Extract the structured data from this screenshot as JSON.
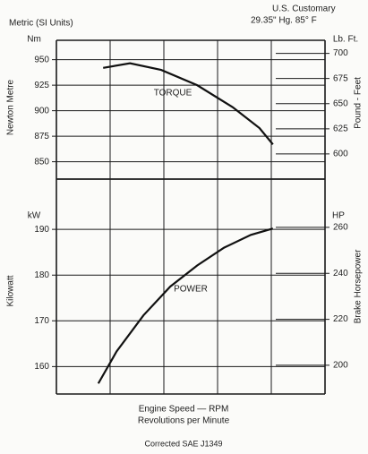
{
  "header": {
    "metric": "Metric (SI Units)",
    "customary": "U.S. Customary",
    "conditions": "29.35\" Hg. 85° F"
  },
  "chart_data": [
    {
      "type": "line",
      "ylabel": "Newton Metre",
      "yunit": "Nm",
      "y2label": "Pound - Feet",
      "y2unit": "Lb. Ft.",
      "xlim": [
        0,
        5
      ],
      "xticks": [
        1,
        2,
        3,
        4
      ],
      "ylim": [
        833,
        969
      ],
      "yticks": [
        850,
        875,
        900,
        925,
        950
      ],
      "y2lim": [
        575,
        713
      ],
      "y2ticks": [
        600,
        625,
        650,
        675,
        700
      ],
      "x": [
        0.87,
        1.37,
        1.95,
        2.62,
        3.28,
        3.78,
        4.03
      ],
      "series": [
        {
          "name": "TORQUE",
          "color": "#111111",
          "values": [
            942,
            946.5,
            940,
            925,
            903.5,
            883,
            867
          ]
        }
      ]
    },
    {
      "type": "line",
      "ylabel": "Kilowatt",
      "yunit": "kW",
      "y2label": "Brake Horsepower",
      "y2unit": "HP",
      "xlim": [
        0,
        5
      ],
      "xticks": [
        1,
        2,
        3,
        4
      ],
      "ylim": [
        154,
        201
      ],
      "yticks": [
        160,
        170,
        180,
        190
      ],
      "y2lim": [
        187.5,
        281
      ],
      "y2ticks": [
        200,
        220,
        240,
        260
      ],
      "x": [
        0.78,
        1.12,
        1.62,
        2.12,
        2.62,
        3.12,
        3.62,
        4.03
      ],
      "series": [
        {
          "name": "POWER",
          "color": "#111111",
          "values": [
            156.3,
            163.3,
            171.2,
            177.5,
            182.1,
            186,
            188.8,
            190.2
          ]
        }
      ]
    }
  ],
  "footer": {
    "xlabel": "Engine Speed — RPM",
    "xsublabel": "Revolutions per Minute",
    "note": "Corrected SAE J1349"
  }
}
